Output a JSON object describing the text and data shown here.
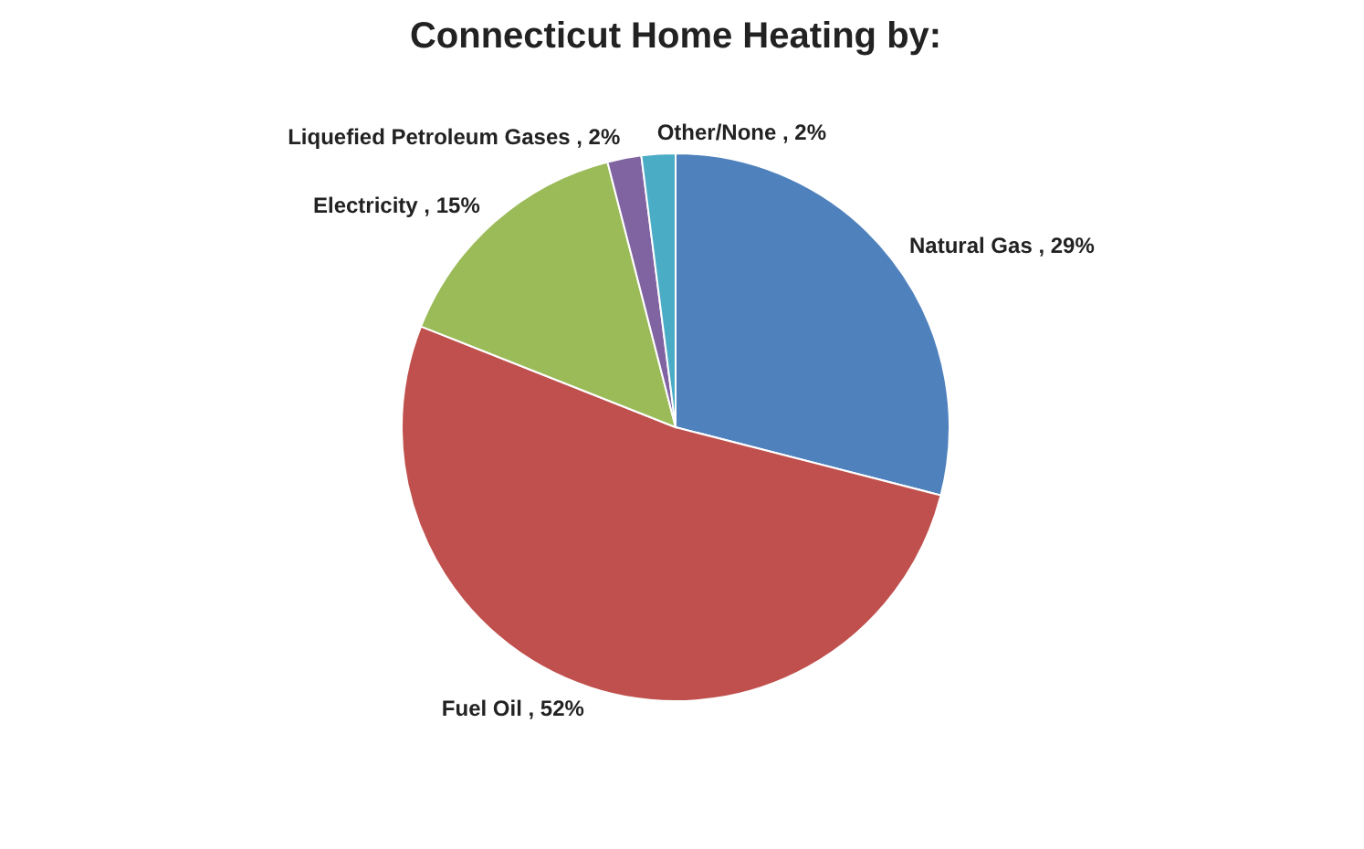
{
  "chart_data": {
    "type": "pie",
    "title": "Connecticut Home Heating by:",
    "categories": [
      "Natural Gas",
      "Fuel Oil",
      "Electricity",
      "Liquefied Petroleum Gases",
      "Other/None"
    ],
    "values": [
      29,
      52,
      15,
      2,
      2
    ],
    "value_labels": [
      "29%",
      "52%",
      "15%",
      "2%",
      "2%"
    ],
    "colors": [
      "#4f81bd",
      "#c0504d",
      "#9bbb59",
      "#8064a2",
      "#4bacc6"
    ],
    "legend": false
  }
}
